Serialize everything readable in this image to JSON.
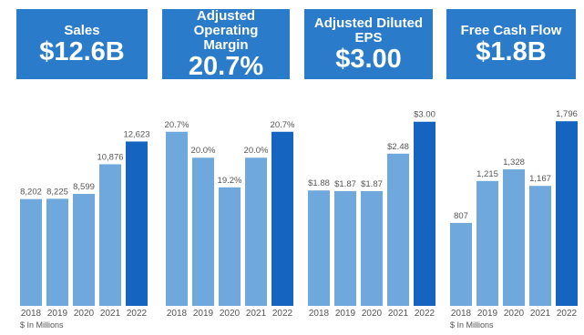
{
  "chart_data": [
    {
      "type": "bar",
      "title": "Sales",
      "subtitle": "$12.6B",
      "categories": [
        "2018",
        "2019",
        "2020",
        "2021",
        "2022"
      ],
      "values": [
        8202,
        8225,
        8599,
        10876,
        12623
      ],
      "value_labels": [
        "8,202",
        "8,225",
        "8,599",
        "10,876",
        "12,623"
      ],
      "colors": [
        "#6fa8dc",
        "#6fa8dc",
        "#6fa8dc",
        "#6fa8dc",
        "#1565c0"
      ],
      "ylim": [
        0,
        16500
      ],
      "note": "$ In Millions"
    },
    {
      "type": "bar",
      "title": "Adjusted Operating Margin",
      "subtitle": "20.7%",
      "categories": [
        "2018",
        "2019",
        "2020",
        "2021",
        "2022"
      ],
      "values": [
        20.7,
        20.0,
        19.2,
        20.0,
        20.7
      ],
      "value_labels": [
        "20.7%",
        "20.0%",
        "19.2%",
        "20.0%",
        "20.7%"
      ],
      "colors": [
        "#6fa8dc",
        "#6fa8dc",
        "#6fa8dc",
        "#6fa8dc",
        "#1565c0"
      ],
      "ylim": [
        16,
        21.8
      ]
    },
    {
      "type": "bar",
      "title": "Adjusted Diluted EPS",
      "subtitle": "$3.00",
      "categories": [
        "2018",
        "2019",
        "2020",
        "2021",
        "2022"
      ],
      "values": [
        1.88,
        1.87,
        1.87,
        2.48,
        3.0
      ],
      "value_labels": [
        "$1.88",
        "$1.87",
        "$1.87",
        "$2.48",
        "$3.00"
      ],
      "colors": [
        "#6fa8dc",
        "#6fa8dc",
        "#6fa8dc",
        "#6fa8dc",
        "#1565c0"
      ],
      "ylim": [
        0,
        3.5
      ]
    },
    {
      "type": "bar",
      "title": "Free Cash Flow",
      "subtitle": "$1.8B",
      "categories": [
        "2018",
        "2019",
        "2020",
        "2021",
        "2022"
      ],
      "values": [
        807,
        1215,
        1328,
        1167,
        1796
      ],
      "value_labels": [
        "807",
        "1,215",
        "1,328",
        "1,167",
        "1,796"
      ],
      "colors": [
        "#6fa8dc",
        "#6fa8dc",
        "#6fa8dc",
        "#6fa8dc",
        "#1565c0"
      ],
      "ylim": [
        0,
        2090
      ],
      "note": "$ In Millions"
    }
  ]
}
